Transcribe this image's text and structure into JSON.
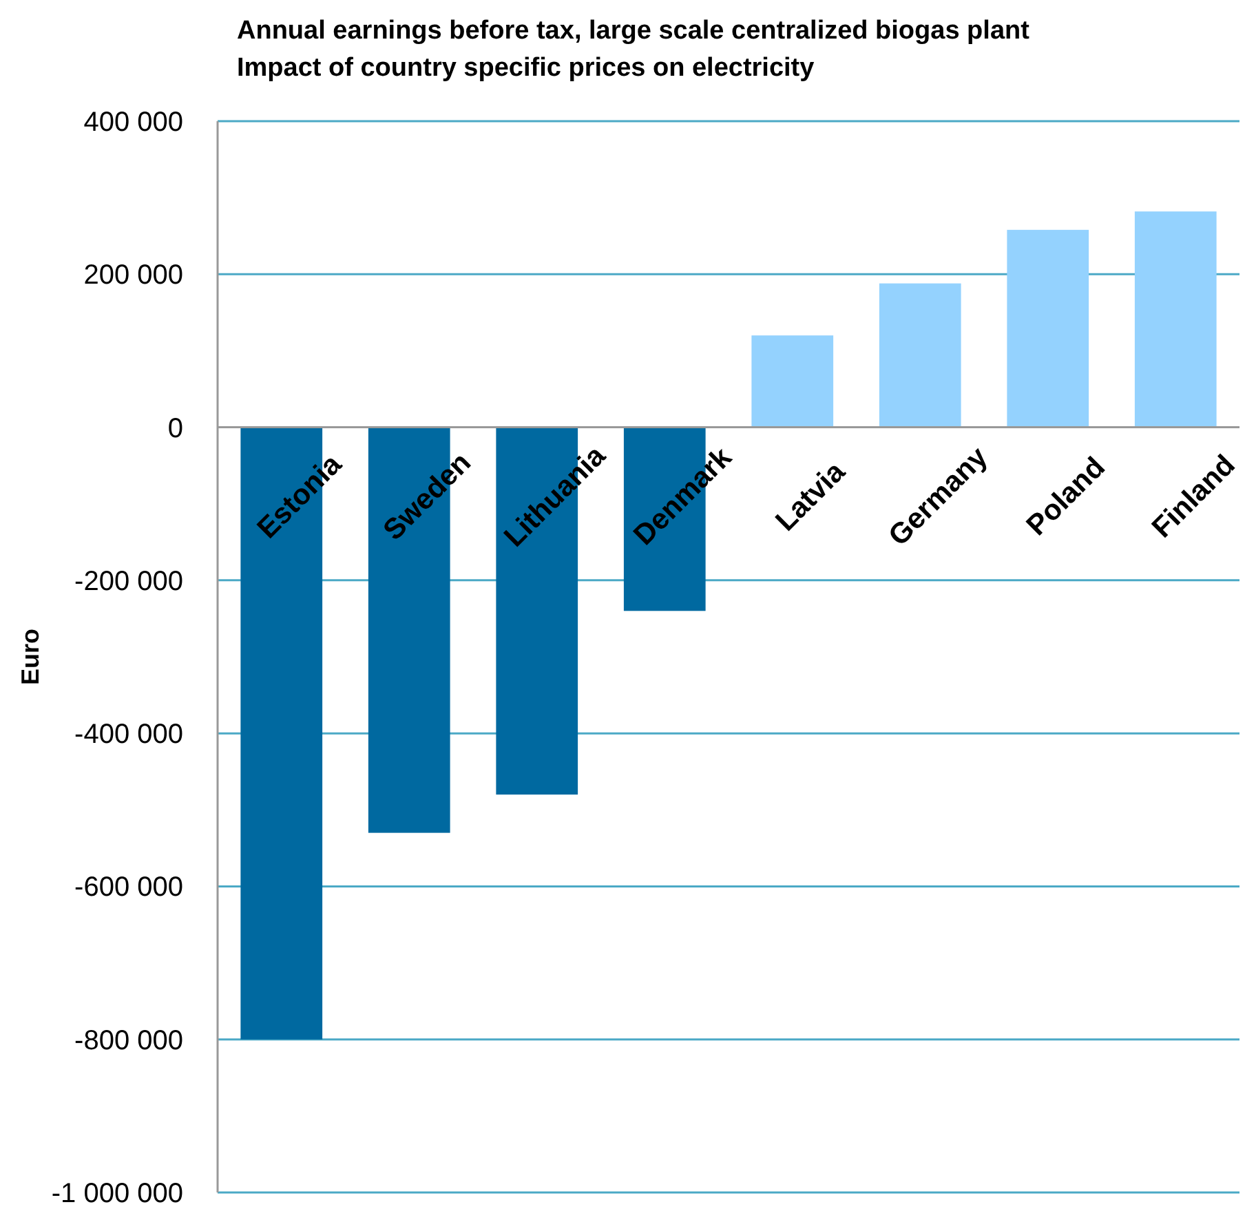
{
  "chart_data": {
    "type": "bar",
    "title": "Annual earnings before tax, large scale centralized biogas plant\nImpact of country specific prices on electricity",
    "ylabel": "Euro",
    "categories": [
      "Estonia",
      "Sweden",
      "Lithuania",
      "Denmark",
      "Latvia",
      "Germany",
      "Poland",
      "Finland"
    ],
    "values": [
      -800000,
      -530000,
      -480000,
      -240000,
      120000,
      188000,
      258000,
      282000
    ],
    "colors": [
      "#0069a0",
      "#0069a0",
      "#0069a0",
      "#0069a0",
      "#94d2fe",
      "#94d2fe",
      "#94d2fe",
      "#94d2fe"
    ],
    "ylim": [
      -1000000,
      400000
    ],
    "yticks": [
      {
        "value": -1000000,
        "label": "-1 000 000"
      },
      {
        "value": -800000,
        "label": "-800 000"
      },
      {
        "value": -600000,
        "label": "-600 000"
      },
      {
        "value": -400000,
        "label": "-400 000"
      },
      {
        "value": -200000,
        "label": "-200 000"
      },
      0,
      {
        "value": 200000,
        "label": "200 000"
      },
      {
        "value": 400000,
        "label": "400 000"
      }
    ],
    "grid": true
  }
}
